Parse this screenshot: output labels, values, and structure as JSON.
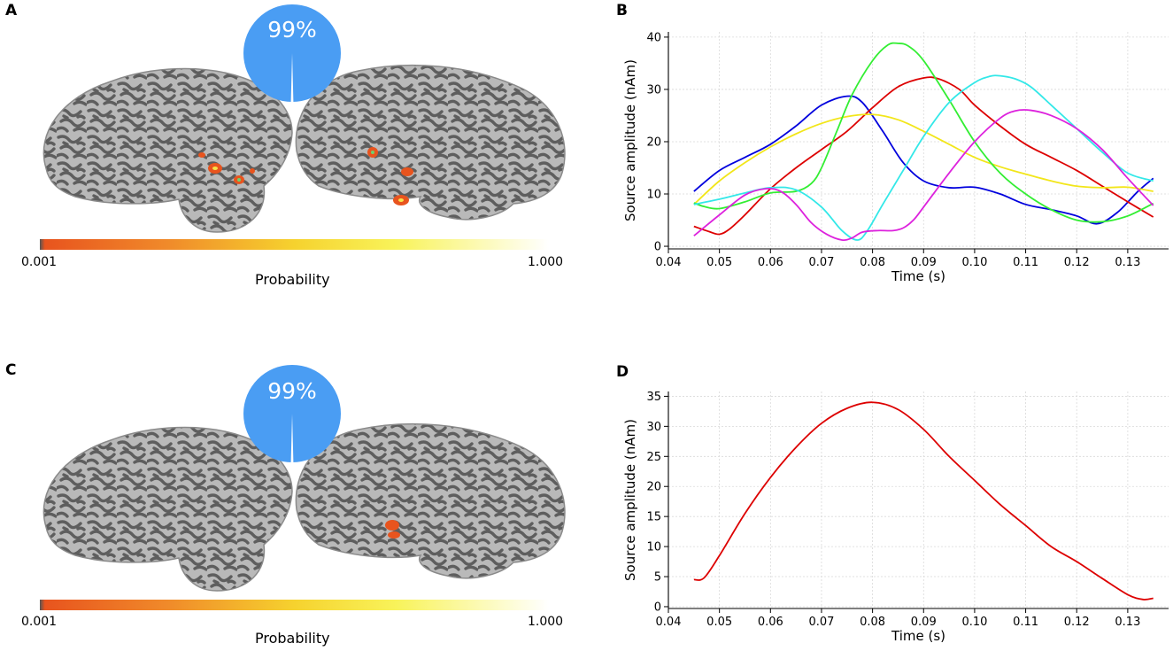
{
  "panels": {
    "a": {
      "letter": "A",
      "percent": "99%",
      "colorbar": {
        "min_label": "0.001",
        "max_label": "1.000",
        "title": "Probability"
      }
    },
    "b": {
      "letter": "B"
    },
    "c": {
      "letter": "C",
      "percent": "99%",
      "colorbar": {
        "min_label": "0.001",
        "max_label": "1.000",
        "title": "Probability"
      }
    },
    "d": {
      "letter": "D"
    }
  },
  "colors": {
    "pie_blue": "#4a9df3",
    "cortex_light": "#b9b9b9",
    "cortex_dark": "#5e5e5e",
    "hotspot_orange": "#e8541e"
  },
  "chart_data": [
    {
      "id": "B",
      "type": "line",
      "title": "",
      "xlabel": "Time (s)",
      "ylabel": "Source amplitude (nAm)",
      "xlim": [
        0.04,
        0.138
      ],
      "ylim": [
        -0.5,
        41
      ],
      "xticks": [
        0.04,
        0.05,
        0.06,
        0.07,
        0.08,
        0.09,
        0.1,
        0.11,
        0.12,
        0.13
      ],
      "xtick_labels": [
        "0.04",
        "0.05",
        "0.06",
        "0.07",
        "0.08",
        "0.09",
        "0.10",
        "0.11",
        "0.12",
        "0.13"
      ],
      "yticks": [
        0,
        10,
        20,
        30,
        40
      ],
      "ytick_labels": [
        "0",
        "10",
        "20",
        "30",
        "40"
      ],
      "grid": true,
      "series": [
        {
          "name": "blue",
          "color": "#0000dd",
          "x": [
            0.045,
            0.05,
            0.055,
            0.06,
            0.065,
            0.07,
            0.075,
            0.078,
            0.082,
            0.086,
            0.09,
            0.095,
            0.1,
            0.105,
            0.11,
            0.115,
            0.12,
            0.124,
            0.128,
            0.132,
            0.135
          ],
          "y": [
            10.5,
            14.5,
            17,
            19.5,
            23,
            27,
            28.7,
            27.5,
            22,
            16,
            12.5,
            11.2,
            11.3,
            10,
            8,
            7,
            5.8,
            4.3,
            6.5,
            10.5,
            13
          ]
        },
        {
          "name": "red",
          "color": "#dd0000",
          "x": [
            0.045,
            0.048,
            0.05,
            0.052,
            0.055,
            0.06,
            0.065,
            0.07,
            0.075,
            0.08,
            0.085,
            0.09,
            0.093,
            0.097,
            0.1,
            0.105,
            0.11,
            0.115,
            0.12,
            0.125,
            0.13,
            0.135
          ],
          "y": [
            3.8,
            2.8,
            2.3,
            3.3,
            6,
            11,
            15,
            18.5,
            22,
            26.5,
            30.5,
            32.2,
            32,
            30,
            27,
            23,
            19.5,
            17,
            14.5,
            11.5,
            8.5,
            5.6
          ]
        },
        {
          "name": "yellow",
          "color": "#f2e61a",
          "x": [
            0.045,
            0.05,
            0.055,
            0.06,
            0.065,
            0.07,
            0.075,
            0.08,
            0.085,
            0.09,
            0.095,
            0.1,
            0.105,
            0.11,
            0.115,
            0.12,
            0.125,
            0.13,
            0.135
          ],
          "y": [
            8,
            12.5,
            16,
            19,
            21.5,
            23.5,
            24.8,
            25.2,
            24.2,
            22,
            19.5,
            17,
            15.2,
            13.8,
            12.5,
            11.5,
            11.2,
            11.3,
            10.5
          ]
        },
        {
          "name": "green",
          "color": "#33ee33",
          "x": [
            0.045,
            0.047,
            0.05,
            0.055,
            0.06,
            0.065,
            0.068,
            0.07,
            0.073,
            0.076,
            0.08,
            0.083,
            0.085,
            0.087,
            0.09,
            0.095,
            0.1,
            0.105,
            0.11,
            0.115,
            0.12,
            0.125,
            0.13,
            0.135
          ],
          "y": [
            8.3,
            7.6,
            7.2,
            8.5,
            10.2,
            10.5,
            12,
            15,
            22,
            29,
            35.5,
            38.5,
            38.8,
            38.3,
            35.5,
            28,
            20,
            14,
            10,
            7,
            5,
            4.7,
            5.8,
            8.2
          ]
        },
        {
          "name": "cyan",
          "color": "#33e8e8",
          "x": [
            0.045,
            0.05,
            0.055,
            0.06,
            0.065,
            0.07,
            0.074,
            0.077,
            0.079,
            0.082,
            0.086,
            0.09,
            0.095,
            0.1,
            0.103,
            0.105,
            0.108,
            0.111,
            0.115,
            0.12,
            0.125,
            0.13,
            0.135
          ],
          "y": [
            8,
            9,
            10.2,
            11.2,
            10.8,
            7.5,
            3,
            1.2,
            3,
            8,
            14.5,
            21,
            27.5,
            31.3,
            32.5,
            32.6,
            32,
            30.5,
            27,
            22.5,
            18,
            14,
            12.5
          ]
        },
        {
          "name": "magenta",
          "color": "#dd22dd",
          "x": [
            0.045,
            0.05,
            0.055,
            0.059,
            0.062,
            0.065,
            0.068,
            0.071,
            0.074,
            0.076,
            0.078,
            0.081,
            0.084,
            0.086,
            0.088,
            0.09,
            0.095,
            0.1,
            0.105,
            0.108,
            0.111,
            0.115,
            0.12,
            0.125,
            0.13,
            0.135
          ],
          "y": [
            2,
            6,
            9.8,
            11,
            10.5,
            8,
            4.5,
            2.3,
            1.2,
            1.6,
            2.7,
            3,
            3,
            3.5,
            5,
            7.5,
            14,
            20,
            24.5,
            25.9,
            26,
            25,
            22.5,
            18.5,
            13,
            7.8
          ]
        }
      ]
    },
    {
      "id": "D",
      "type": "line",
      "title": "",
      "xlabel": "Time (s)",
      "ylabel": "Source amplitude (nAm)",
      "xlim": [
        0.04,
        0.138
      ],
      "ylim": [
        -0.3,
        35.8
      ],
      "xticks": [
        0.04,
        0.05,
        0.06,
        0.07,
        0.08,
        0.09,
        0.1,
        0.11,
        0.12,
        0.13
      ],
      "xtick_labels": [
        "0.04",
        "0.05",
        "0.06",
        "0.07",
        "0.08",
        "0.09",
        "0.10",
        "0.11",
        "0.12",
        "0.13"
      ],
      "yticks": [
        0,
        5,
        10,
        15,
        20,
        25,
        30,
        35
      ],
      "ytick_labels": [
        "0",
        "5",
        "10",
        "15",
        "20",
        "25",
        "30",
        "35"
      ],
      "grid": true,
      "series": [
        {
          "name": "red",
          "color": "#dd0000",
          "x": [
            0.045,
            0.047,
            0.05,
            0.055,
            0.06,
            0.065,
            0.07,
            0.075,
            0.08,
            0.085,
            0.09,
            0.095,
            0.1,
            0.105,
            0.11,
            0.115,
            0.12,
            0.125,
            0.13,
            0.133,
            0.135
          ],
          "y": [
            4.5,
            4.8,
            8.5,
            15.5,
            21.5,
            26.5,
            30.5,
            33,
            34,
            32.8,
            29.5,
            25,
            21,
            17,
            13.5,
            10,
            7.5,
            4.7,
            2,
            1.2,
            1.4
          ]
        }
      ]
    }
  ]
}
